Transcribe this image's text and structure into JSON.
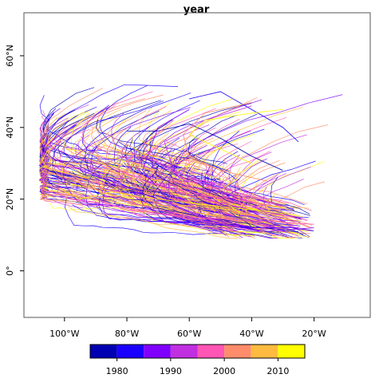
{
  "title": "year",
  "colors": {
    "frame": "#555555",
    "legend_bins": [
      "#0000b3",
      "#1a00ff",
      "#8000ff",
      "#c030e0",
      "#ff55b5",
      "#ff8c6a",
      "#ffbb40",
      "#ffff00"
    ]
  },
  "chart_data": {
    "type": "map",
    "title": "year",
    "xlim": [
      -113,
      -2
    ],
    "ylim": [
      -13,
      72
    ],
    "x_ticks": [
      {
        "value": -100,
        "label": "100°W"
      },
      {
        "value": -80,
        "label": "80°W"
      },
      {
        "value": -60,
        "label": "60°W"
      },
      {
        "value": -40,
        "label": "40°W"
      },
      {
        "value": -20,
        "label": "20°W"
      }
    ],
    "y_ticks": [
      {
        "value": 0,
        "label": "0°"
      },
      {
        "value": 20,
        "label": "20°N"
      },
      {
        "value": 40,
        "label": "40°N"
      },
      {
        "value": 60,
        "label": "60°N"
      }
    ],
    "legend": {
      "title": "",
      "range": [
        1975,
        2015
      ],
      "bins": [
        1975,
        1980,
        1985,
        1990,
        1995,
        2000,
        2005,
        2010,
        2015
      ],
      "tick_values": [
        1980,
        1990,
        2000,
        2010
      ],
      "tick_labels": [
        "1980",
        "1990",
        "2000",
        "2010"
      ]
    },
    "tracks_note": "",
    "sample_tracks": [
      {
        "year": 1978,
        "points": [
          [
            -30,
            28
          ],
          [
            -35,
            30
          ],
          [
            -40,
            32
          ],
          [
            -50,
            37
          ],
          [
            -60,
            41
          ],
          [
            -70,
            39
          ],
          [
            -80,
            39
          ]
        ]
      },
      {
        "year": 1982,
        "points": [
          [
            -25,
            36
          ],
          [
            -30,
            40
          ],
          [
            -40,
            45
          ],
          [
            -50,
            50
          ],
          [
            -60,
            48
          ]
        ]
      },
      {
        "year": 1985,
        "points": [
          [
            -25,
            12
          ],
          [
            -40,
            12
          ],
          [
            -55,
            15
          ],
          [
            -70,
            20
          ],
          [
            -85,
            25
          ],
          [
            -95,
            28
          ]
        ]
      },
      {
        "year": 1988,
        "points": [
          [
            -20,
            12
          ],
          [
            -35,
            11
          ],
          [
            -50,
            13
          ],
          [
            -65,
            18
          ],
          [
            -75,
            28
          ],
          [
            -70,
            40
          ],
          [
            -60,
            45
          ]
        ]
      },
      {
        "year": 1992,
        "points": [
          [
            -25,
            15
          ],
          [
            -40,
            17
          ],
          [
            -55,
            20
          ],
          [
            -65,
            28
          ],
          [
            -68,
            36
          ],
          [
            -55,
            42
          ],
          [
            -40,
            46
          ]
        ]
      },
      {
        "year": 1995,
        "points": [
          [
            -30,
            18
          ],
          [
            -45,
            22
          ],
          [
            -60,
            25
          ],
          [
            -70,
            30
          ],
          [
            -75,
            35
          ],
          [
            -65,
            42
          ]
        ]
      },
      {
        "year": 1999,
        "points": [
          [
            -20,
            13
          ],
          [
            -40,
            14
          ],
          [
            -60,
            15
          ],
          [
            -80,
            17
          ],
          [
            -90,
            20
          ],
          [
            -95,
            25
          ]
        ]
      },
      {
        "year": 2003,
        "points": [
          [
            -35,
            25
          ],
          [
            -50,
            28
          ],
          [
            -60,
            32
          ],
          [
            -62,
            38
          ],
          [
            -55,
            44
          ],
          [
            -40,
            47
          ]
        ]
      },
      {
        "year": 2006,
        "points": [
          [
            -25,
            14
          ],
          [
            -45,
            16
          ],
          [
            -60,
            20
          ],
          [
            -75,
            25
          ],
          [
            -85,
            28
          ],
          [
            -90,
            32
          ]
        ]
      },
      {
        "year": 2011,
        "points": [
          [
            -30,
            16
          ],
          [
            -50,
            18
          ],
          [
            -70,
            20
          ],
          [
            -85,
            22
          ],
          [
            -95,
            20
          ],
          [
            -100,
            22
          ]
        ]
      },
      {
        "year": 2014,
        "points": [
          [
            -40,
            30
          ],
          [
            -50,
            34
          ],
          [
            -60,
            38
          ],
          [
            -55,
            42
          ],
          [
            -40,
            44
          ],
          [
            -30,
            45
          ]
        ]
      }
    ]
  }
}
